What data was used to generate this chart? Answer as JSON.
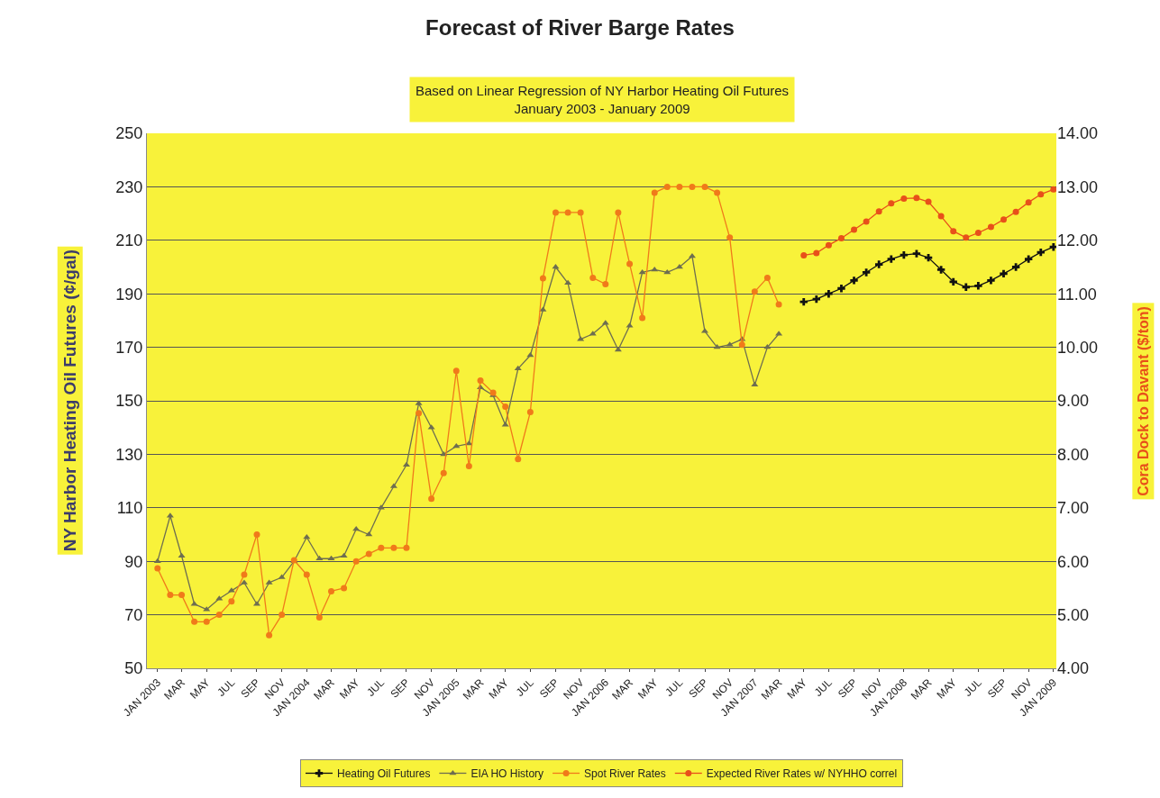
{
  "chart_data": {
    "type": "line",
    "title": "Forecast of River Barge Rates",
    "subtitle": "Based on Linear Regression of NY Harbor Heating Oil Futures\nJanuary 2003 - January 2009",
    "ylabel": "NY Harbor Heating Oil Futures (¢/gal)",
    "y2label": "Cora Dock to Davant ($/ton)",
    "xlim": [
      "2002-12-06",
      "2009-01-08"
    ],
    "xticks": [
      {
        "value": "2003-01",
        "label": "JAN 2003"
      },
      {
        "value": "2003-03",
        "label": "MAR"
      },
      {
        "value": "2003-05",
        "label": "MAY"
      },
      {
        "value": "2003-07",
        "label": "JUL"
      },
      {
        "value": "2003-09",
        "label": "SEP"
      },
      {
        "value": "2003-11",
        "label": "NOV"
      },
      {
        "value": "2004-01",
        "label": "JAN 2004"
      },
      {
        "value": "2004-03",
        "label": "MAR"
      },
      {
        "value": "2004-05",
        "label": "MAY"
      },
      {
        "value": "2004-07",
        "label": "JUL"
      },
      {
        "value": "2004-09",
        "label": "SEP"
      },
      {
        "value": "2004-11",
        "label": "NOV"
      },
      {
        "value": "2005-01",
        "label": "JAN 2005"
      },
      {
        "value": "2005-03",
        "label": "MAR"
      },
      {
        "value": "2005-05",
        "label": "MAY"
      },
      {
        "value": "2005-07",
        "label": "JUL"
      },
      {
        "value": "2005-09",
        "label": "SEP"
      },
      {
        "value": "2005-11",
        "label": "NOV"
      },
      {
        "value": "2006-01",
        "label": "JAN 2006"
      },
      {
        "value": "2006-03",
        "label": "MAR"
      },
      {
        "value": "2006-05",
        "label": "MAY"
      },
      {
        "value": "2006-07",
        "label": "JUL"
      },
      {
        "value": "2006-09",
        "label": "SEP"
      },
      {
        "value": "2006-11",
        "label": "NOV"
      },
      {
        "value": "2007-01",
        "label": "JAN 2007"
      },
      {
        "value": "2007-03",
        "label": "MAR"
      },
      {
        "value": "2007-05",
        "label": "MAY"
      },
      {
        "value": "2007-07",
        "label": "JUL"
      },
      {
        "value": "2007-09",
        "label": "SEP"
      },
      {
        "value": "2007-11",
        "label": "NOV"
      },
      {
        "value": "2008-01",
        "label": "JAN 2008"
      },
      {
        "value": "2008-03",
        "label": "MAR"
      },
      {
        "value": "2008-05",
        "label": "MAY"
      },
      {
        "value": "2008-07",
        "label": "JUL"
      },
      {
        "value": "2008-09",
        "label": "SEP"
      },
      {
        "value": "2008-11",
        "label": "NOV"
      },
      {
        "value": "2009-01",
        "label": "JAN 2009"
      }
    ],
    "ylim": [
      50,
      250
    ],
    "yticks": [
      50,
      70,
      90,
      110,
      130,
      150,
      170,
      190,
      210,
      230,
      250
    ],
    "y2lim": [
      4,
      14
    ],
    "y2ticks": [
      {
        "value": 4,
        "label": "4.00"
      },
      {
        "value": 5,
        "label": "5.00"
      },
      {
        "value": 6,
        "label": "6.00"
      },
      {
        "value": 7,
        "label": "7.00"
      },
      {
        "value": 8,
        "label": "8.00"
      },
      {
        "value": 9,
        "label": "9.00"
      },
      {
        "value": 10,
        "label": "10.00"
      },
      {
        "value": 11,
        "label": "11.00"
      },
      {
        "value": 12,
        "label": "12.00"
      },
      {
        "value": 13,
        "label": "13.00"
      },
      {
        "value": 14,
        "label": "14.00"
      }
    ],
    "grid": "y",
    "legend": "bottom",
    "line_style": "solid",
    "series": [
      {
        "name": "Heating Oil Futures",
        "color": "#111111",
        "marker": "cross",
        "x": [
          "2007-05",
          "2007-06",
          "2007-07",
          "2007-08",
          "2007-09",
          "2007-10",
          "2007-11",
          "2007-12",
          "2008-01",
          "2008-02",
          "2008-03",
          "2008-04",
          "2008-05",
          "2008-06",
          "2008-07",
          "2008-08",
          "2008-09",
          "2008-10",
          "2008-11",
          "2008-12",
          "2009-01"
        ],
        "values": [
          187,
          188,
          190,
          192,
          195,
          198,
          201,
          203,
          204.5,
          205,
          203.5,
          199,
          194.5,
          192.5,
          193,
          195,
          197.5,
          200,
          203,
          205.5,
          207.5
        ]
      },
      {
        "name": "EIA HO History",
        "color": "#6e6e50",
        "marker": "triangle",
        "x": [
          "2003-01",
          "2003-02",
          "2003-03",
          "2003-04",
          "2003-05",
          "2003-06",
          "2003-07",
          "2003-08",
          "2003-09",
          "2003-10",
          "2003-11",
          "2003-12",
          "2004-01",
          "2004-02",
          "2004-03",
          "2004-04",
          "2004-05",
          "2004-06",
          "2004-07",
          "2004-08",
          "2004-09",
          "2004-10",
          "2004-11",
          "2004-12",
          "2005-01",
          "2005-02",
          "2005-03",
          "2005-04",
          "2005-05",
          "2005-06",
          "2005-07",
          "2005-08",
          "2005-09",
          "2005-10",
          "2005-11",
          "2005-12",
          "2006-01",
          "2006-02",
          "2006-03",
          "2006-04",
          "2006-05",
          "2006-06",
          "2006-07",
          "2006-08",
          "2006-09",
          "2006-10",
          "2006-11",
          "2006-12",
          "2007-01",
          "2007-02",
          "2007-03"
        ],
        "values": [
          90,
          107,
          92,
          74,
          72,
          76,
          79,
          82,
          74,
          82,
          84,
          90,
          99,
          91,
          91,
          92,
          102,
          100,
          110,
          118,
          126,
          149,
          140,
          130,
          133,
          134,
          155,
          152,
          141,
          162,
          167,
          184,
          200,
          194,
          173,
          175,
          179,
          169,
          178,
          198,
          199,
          198,
          200,
          204,
          176,
          170,
          171,
          173,
          156,
          170,
          175
        ]
      },
      {
        "name": "Spot River Rates",
        "color": "#f07a1a",
        "marker": "circle",
        "axis": "y2",
        "x": [
          "2003-01",
          "2003-02",
          "2003-03",
          "2003-04",
          "2003-05",
          "2003-06",
          "2003-07",
          "2003-08",
          "2003-09",
          "2003-10",
          "2003-11",
          "2003-12",
          "2004-01",
          "2004-02",
          "2004-03",
          "2004-04",
          "2004-05",
          "2004-06",
          "2004-07",
          "2004-08",
          "2004-09",
          "2004-10",
          "2004-11",
          "2004-12",
          "2005-01",
          "2005-02",
          "2005-03",
          "2005-04",
          "2005-05",
          "2005-06",
          "2005-07",
          "2005-08",
          "2005-09",
          "2005-10",
          "2005-11",
          "2005-12",
          "2006-01",
          "2006-02",
          "2006-03",
          "2006-04",
          "2006-05",
          "2006-06",
          "2006-07",
          "2006-08",
          "2006-09",
          "2006-10",
          "2006-11",
          "2006-12",
          "2007-01",
          "2007-02",
          "2007-03"
        ],
        "values": [
          5.87,
          5.37,
          5.37,
          4.87,
          4.87,
          5.0,
          5.25,
          5.75,
          6.5,
          4.62,
          5.0,
          6.02,
          5.75,
          4.95,
          5.44,
          5.5,
          6.0,
          6.14,
          6.25,
          6.25,
          6.25,
          8.77,
          7.17,
          7.65,
          9.56,
          7.78,
          9.38,
          9.15,
          8.89,
          7.91,
          8.79,
          11.29,
          12.52,
          12.52,
          12.52,
          11.3,
          11.18,
          12.52,
          11.56,
          10.55,
          12.89,
          13.0,
          13.0,
          13.0,
          13.0,
          12.89,
          12.05,
          10.05,
          11.04,
          11.3,
          10.8
        ]
      },
      {
        "name": "Expected River Rates w/ NYHHO correl",
        "color": "#e8501a",
        "marker": "circle",
        "axis": "y2",
        "x": [
          "2007-05",
          "2007-06",
          "2007-07",
          "2007-08",
          "2007-09",
          "2007-10",
          "2007-11",
          "2007-12",
          "2008-01",
          "2008-02",
          "2008-03",
          "2008-04",
          "2008-05",
          "2008-06",
          "2008-07",
          "2008-08",
          "2008-09",
          "2008-10",
          "2008-11",
          "2008-12",
          "2009-01"
        ],
        "values": [
          11.72,
          11.76,
          11.91,
          12.04,
          12.2,
          12.35,
          12.54,
          12.69,
          12.78,
          12.79,
          12.72,
          12.45,
          12.17,
          12.05,
          12.14,
          12.25,
          12.39,
          12.53,
          12.71,
          12.86,
          12.95
        ]
      }
    ]
  }
}
